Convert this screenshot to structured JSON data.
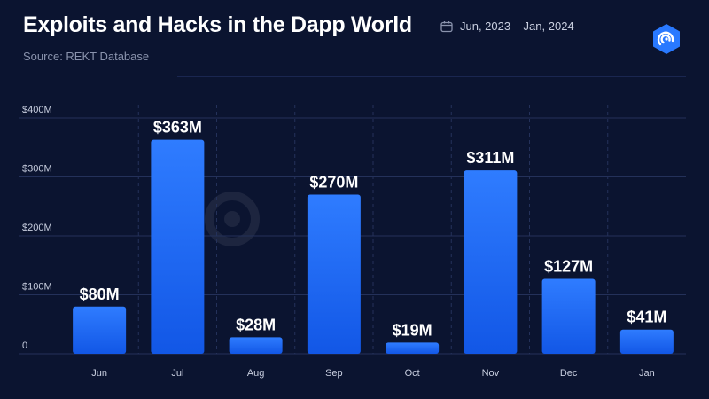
{
  "header": {
    "title": "Exploits and Hacks in the Dapp World",
    "source": "Source: REKT Database",
    "date_range": "Jun, 2023 – Jan, 2024",
    "calendar_icon": "calendar-icon",
    "logo_icon": "dappradar-logo-icon",
    "watermark": "DappRadar"
  },
  "colors": {
    "background": "#0b1430",
    "bar_top": "#2f7cff",
    "bar_bottom": "#1257e6",
    "grid": "#24315a",
    "tick_text": "#c9cfe0",
    "logo": "#2979ff"
  },
  "chart_data": {
    "type": "bar",
    "title": "Exploits and Hacks in the Dapp World",
    "xlabel": "",
    "ylabel": "",
    "categories": [
      "Jun",
      "Jul",
      "Aug",
      "Sep",
      "Oct",
      "Nov",
      "Dec",
      "Jan"
    ],
    "values": [
      80,
      363,
      28,
      270,
      19,
      311,
      127,
      41
    ],
    "data_labels": [
      "$80M",
      "$363M",
      "$28M",
      "$270M",
      "$19M",
      "$311M",
      "$127M",
      "$41M"
    ],
    "y_ticks": [
      0,
      100,
      200,
      300,
      400
    ],
    "y_tick_labels": [
      "0",
      "$100M",
      "$200M",
      "$300M",
      "$400M"
    ],
    "ylim": [
      0,
      400
    ],
    "grid": true,
    "legend": "none"
  }
}
